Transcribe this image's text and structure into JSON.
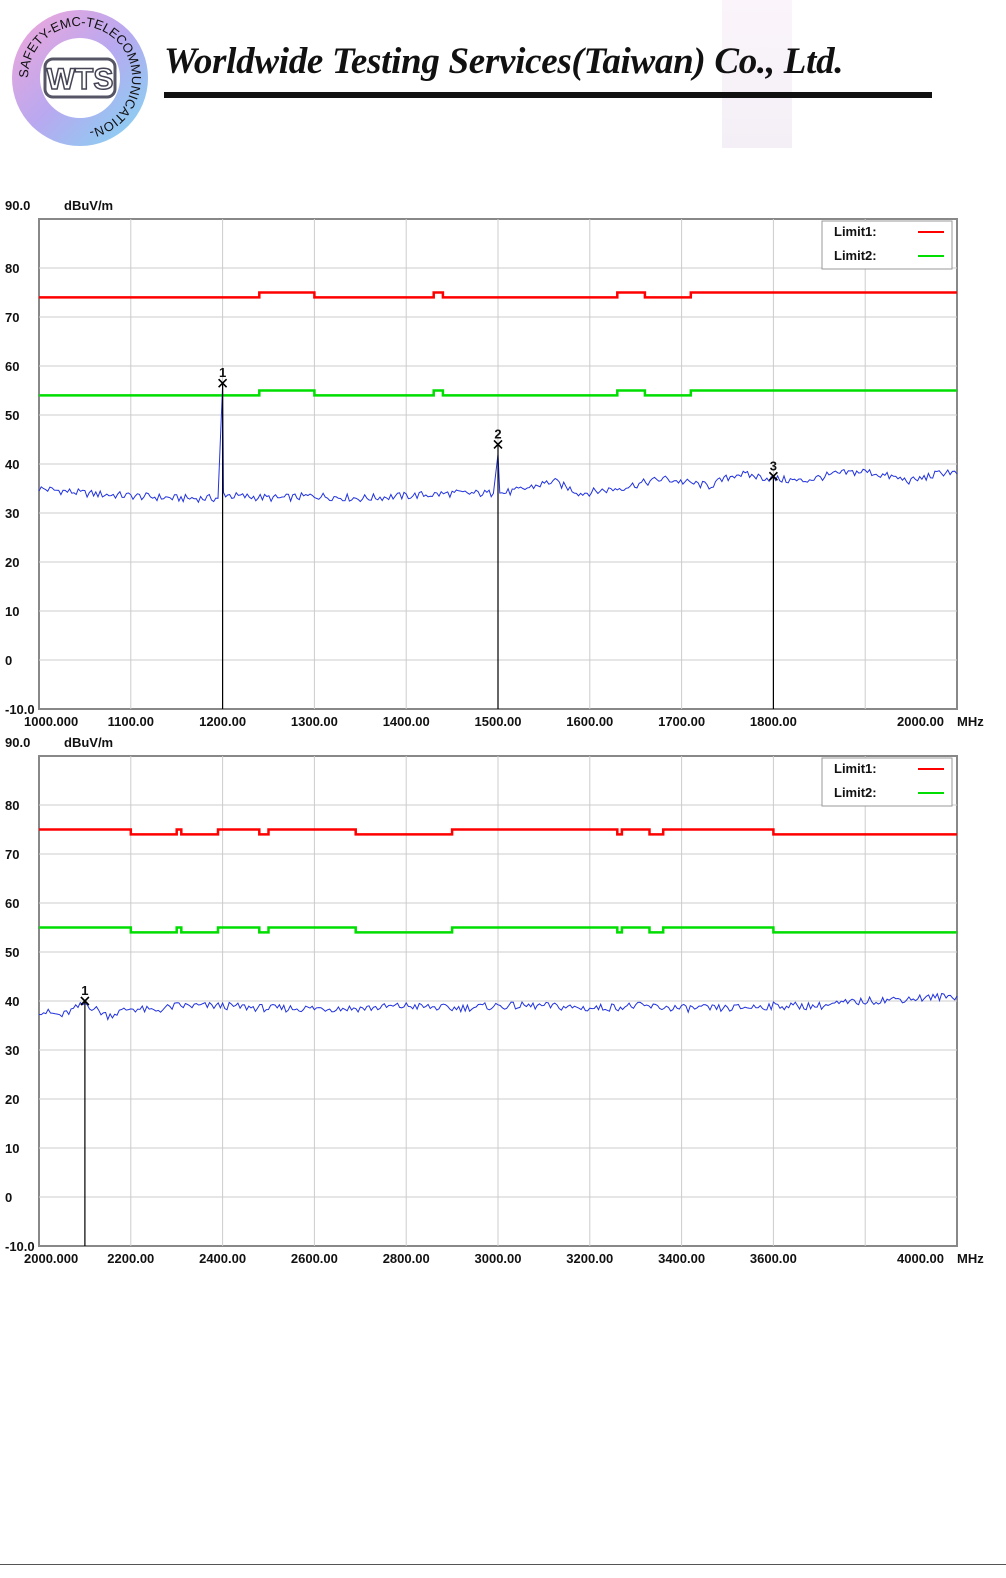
{
  "header": {
    "company_name": "Worldwide Testing Services(Taiwan) Co., Ltd.",
    "logo_text": "WTS",
    "logo_ring_text": "SAFETY-EMC-TELECOMMUNICATION-"
  },
  "colors": {
    "limit1": "#ff0000",
    "limit2": "#00dd00",
    "trace": "#2233dd",
    "marker": "#000000"
  },
  "chart_data": [
    {
      "type": "line",
      "ylabel": "dBuV/m",
      "xlabel": "MHz",
      "ylim": [
        -10,
        90
      ],
      "xlim": [
        1000,
        2000
      ],
      "yticks": [
        "90.0",
        "80",
        "70",
        "60",
        "50",
        "40",
        "30",
        "20",
        "10",
        "0",
        "-10.0"
      ],
      "xticks": [
        {
          "v": 1000,
          "label": "1000.000"
        },
        {
          "v": 1100,
          "label": "1100.00"
        },
        {
          "v": 1200,
          "label": "1200.00"
        },
        {
          "v": 1300,
          "label": "1300.00"
        },
        {
          "v": 1400,
          "label": "1400.00"
        },
        {
          "v": 1500,
          "label": "1500.00"
        },
        {
          "v": 1600,
          "label": "1600.00"
        },
        {
          "v": 1700,
          "label": "1700.00"
        },
        {
          "v": 1800,
          "label": "1800.00"
        },
        {
          "v": 2000,
          "label": "2000.00"
        }
      ],
      "legend": [
        {
          "label": "Limit1:",
          "series": "limit1"
        },
        {
          "label": "Limit2:",
          "series": "limit2"
        }
      ],
      "series": [
        {
          "id": "limit1",
          "x": [
            1000,
            1240,
            1240,
            1300,
            1300,
            1430,
            1430,
            1440,
            1440,
            1630,
            1630,
            1660,
            1660,
            1710,
            1710,
            1720,
            1720,
            2000
          ],
          "y": [
            74,
            74,
            75,
            75,
            74,
            74,
            75,
            75,
            74,
            74,
            75,
            75,
            74,
            74,
            75,
            75,
            75,
            75
          ]
        },
        {
          "id": "limit2",
          "x": [
            1000,
            1240,
            1240,
            1300,
            1300,
            1430,
            1430,
            1440,
            1440,
            1630,
            1630,
            1660,
            1660,
            1710,
            1710,
            1720,
            1720,
            2000
          ],
          "y": [
            54,
            54,
            55,
            55,
            54,
            54,
            55,
            55,
            54,
            54,
            55,
            55,
            54,
            54,
            55,
            55,
            55,
            55
          ]
        },
        {
          "id": "trace",
          "x": [
            1000,
            1050,
            1100,
            1150,
            1195,
            1200,
            1201,
            1210,
            1260,
            1300,
            1350,
            1400,
            1450,
            1495,
            1500,
            1502,
            1520,
            1560,
            1590,
            1630,
            1680,
            1730,
            1760,
            1800,
            1830,
            1870,
            1900,
            1950,
            1990,
            2000
          ],
          "y": [
            35,
            34,
            33.5,
            33,
            33,
            56,
            34,
            33.5,
            33,
            33.5,
            33,
            33.5,
            34,
            34,
            42,
            34,
            34.5,
            36.5,
            34,
            35,
            37,
            35.5,
            38,
            37,
            36.5,
            38,
            38.5,
            36.5,
            38.5,
            38
          ]
        }
      ],
      "markers": [
        {
          "label": "1",
          "x": 1200,
          "y": 56.5
        },
        {
          "label": "2",
          "x": 1500,
          "y": 44
        },
        {
          "label": "3",
          "x": 1800,
          "y": 37.5
        }
      ]
    },
    {
      "type": "line",
      "ylabel": "dBuV/m",
      "xlabel": "MHz",
      "ylim": [
        -10,
        90
      ],
      "xlim": [
        2000,
        4000
      ],
      "yticks": [
        "90.0",
        "80",
        "70",
        "60",
        "50",
        "40",
        "30",
        "20",
        "10",
        "0",
        "-10.0"
      ],
      "xticks": [
        {
          "v": 2000,
          "label": "2000.000"
        },
        {
          "v": 2200,
          "label": "2200.00"
        },
        {
          "v": 2400,
          "label": "2400.00"
        },
        {
          "v": 2600,
          "label": "2600.00"
        },
        {
          "v": 2800,
          "label": "2800.00"
        },
        {
          "v": 3000,
          "label": "3000.00"
        },
        {
          "v": 3200,
          "label": "3200.00"
        },
        {
          "v": 3400,
          "label": "3400.00"
        },
        {
          "v": 3600,
          "label": "3600.00"
        },
        {
          "v": 4000,
          "label": "4000.00"
        }
      ],
      "legend": [
        {
          "label": "Limit1:",
          "series": "limit1"
        },
        {
          "label": "Limit2:",
          "series": "limit2"
        }
      ],
      "series": [
        {
          "id": "limit1",
          "x": [
            2000,
            2200,
            2200,
            2300,
            2300,
            2310,
            2310,
            2390,
            2390,
            2480,
            2480,
            2500,
            2500,
            2690,
            2690,
            2900,
            2900,
            3260,
            3260,
            3270,
            3270,
            3330,
            3330,
            3360,
            3360,
            3600,
            3600,
            4000
          ],
          "y": [
            75,
            75,
            74,
            74,
            75,
            75,
            74,
            74,
            75,
            75,
            74,
            74,
            75,
            75,
            74,
            74,
            75,
            75,
            74,
            74,
            75,
            75,
            74,
            74,
            75,
            75,
            74,
            74
          ]
        },
        {
          "id": "limit2",
          "x": [
            2000,
            2200,
            2200,
            2300,
            2300,
            2310,
            2310,
            2390,
            2390,
            2480,
            2480,
            2500,
            2500,
            2690,
            2690,
            2900,
            2900,
            3260,
            3260,
            3270,
            3270,
            3330,
            3330,
            3360,
            3360,
            3600,
            3600,
            4000
          ],
          "y": [
            55,
            55,
            54,
            54,
            55,
            55,
            54,
            54,
            55,
            55,
            54,
            54,
            55,
            55,
            54,
            54,
            55,
            55,
            54,
            54,
            55,
            55,
            54,
            54,
            55,
            55,
            54,
            54
          ]
        },
        {
          "id": "trace",
          "x": [
            2000,
            2050,
            2100,
            2150,
            2200,
            2250,
            2300,
            2400,
            2500,
            2600,
            2700,
            2800,
            2900,
            3000,
            3100,
            3200,
            3300,
            3400,
            3500,
            3600,
            3700,
            3800,
            3900,
            4000
          ],
          "y": [
            38,
            37,
            39.5,
            37,
            38.5,
            38,
            39,
            39,
            38.5,
            38.5,
            38.5,
            39,
            38.5,
            39,
            39,
            38.5,
            39,
            38.5,
            38.5,
            39,
            39,
            40,
            40.5,
            41
          ]
        }
      ],
      "markers": [
        {
          "label": "1",
          "x": 2100,
          "y": 40
        }
      ]
    }
  ]
}
